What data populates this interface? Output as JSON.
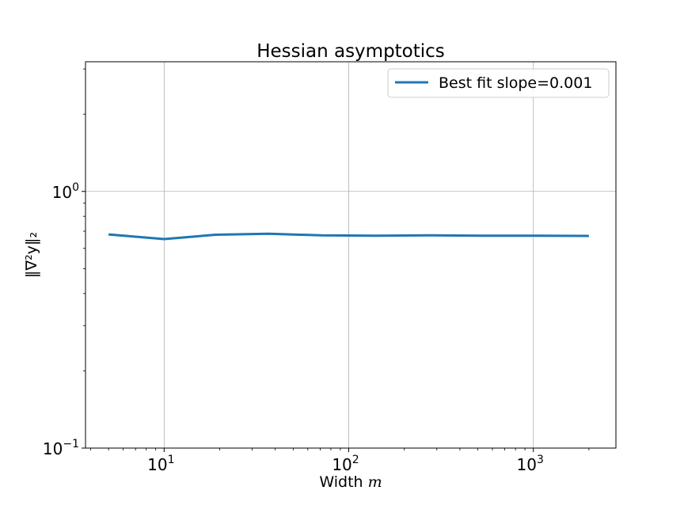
{
  "chart_data": {
    "type": "line",
    "title": "Hessian asymptotics",
    "xlabel": "Width m",
    "xlabel_text": "Width ",
    "xlabel_var": "m",
    "ylabel": "‖∇²y‖₂",
    "x_scale": "log",
    "y_scale": "log",
    "xlim": [
      3.75,
      2800
    ],
    "ylim": [
      0.1,
      3.2
    ],
    "x_ticks": [
      {
        "value": 10,
        "base": "10",
        "exp": "1"
      },
      {
        "value": 100,
        "base": "10",
        "exp": "2"
      },
      {
        "value": 1000,
        "base": "10",
        "exp": "3"
      }
    ],
    "y_ticks": [
      {
        "value": 0.1,
        "base": "10",
        "exp": "−1"
      },
      {
        "value": 1,
        "base": "10",
        "exp": "0"
      }
    ],
    "grid": true,
    "legend_position": "top-right",
    "series": [
      {
        "name": "Best fit slope=0.001",
        "color": "#1f77b4",
        "x": [
          5,
          10,
          19,
          37,
          71,
          140,
          275,
          540,
          1050,
          2000
        ],
        "y": [
          0.68,
          0.652,
          0.678,
          0.684,
          0.674,
          0.672,
          0.674,
          0.672,
          0.672,
          0.671
        ]
      }
    ]
  }
}
